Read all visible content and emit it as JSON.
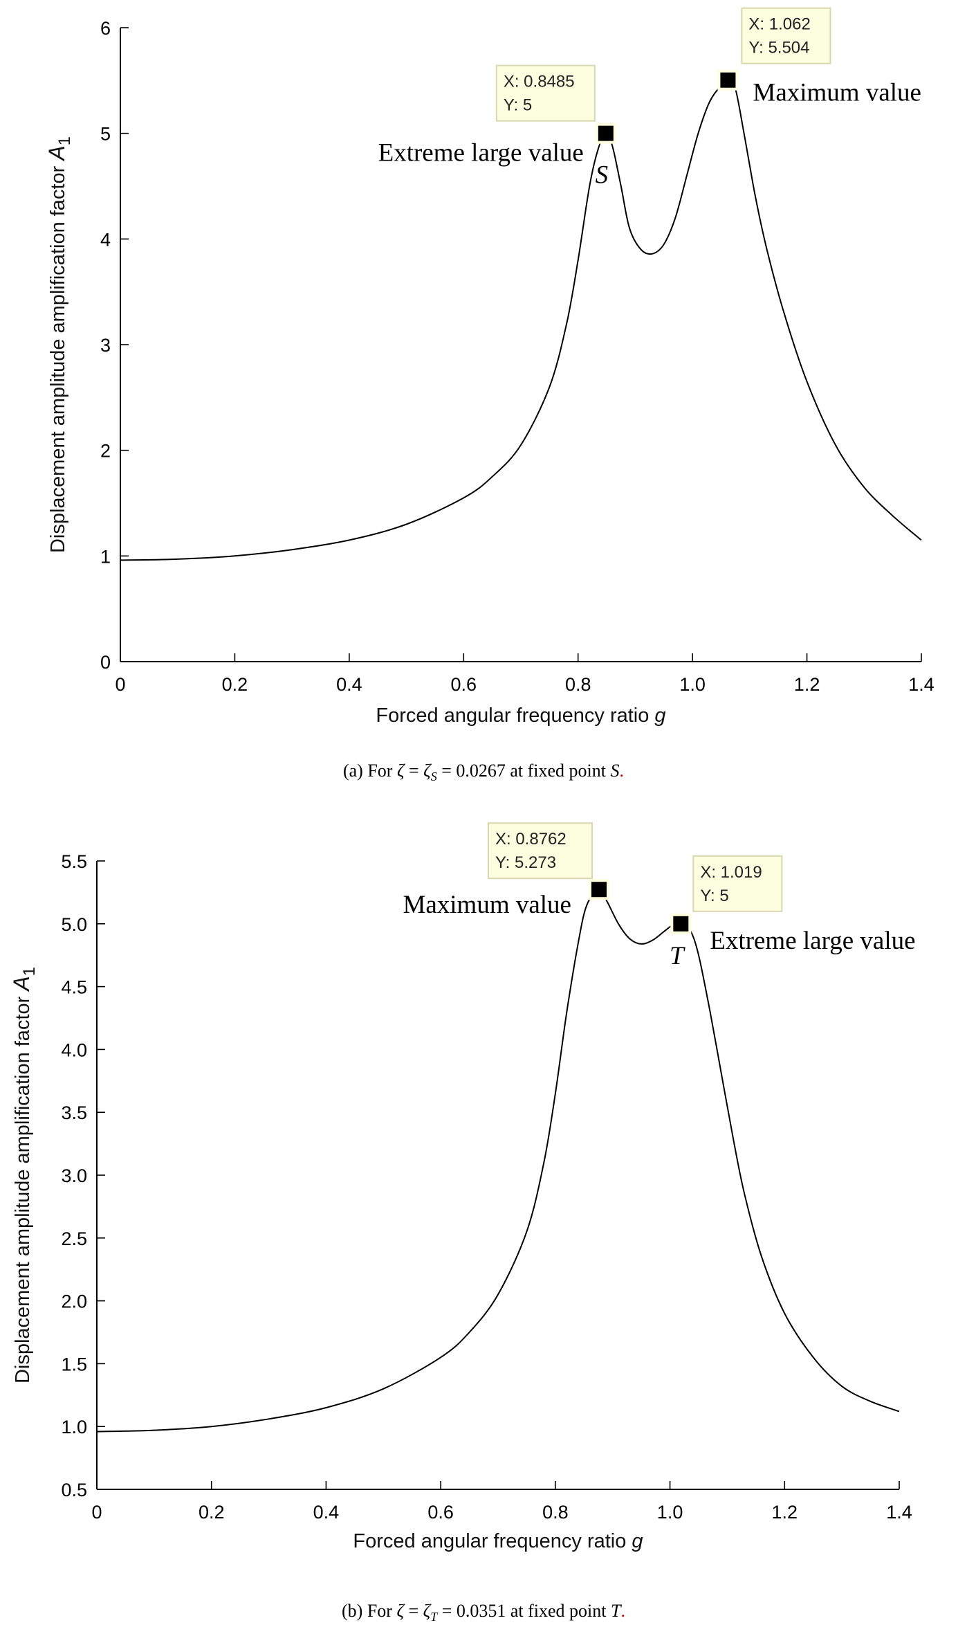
{
  "chart_data": [
    {
      "type": "line",
      "xlabel": "Forced angular frequency ratio",
      "xlabel_var": "g",
      "ylabel": "Displacement amplitude amplification factor",
      "ylabel_var": "A",
      "ylabel_sub": "1",
      "xlim": [
        0,
        1.4
      ],
      "ylim": [
        0,
        6
      ],
      "grid": false,
      "xticks": [
        0,
        0.2,
        0.4,
        0.6,
        0.8,
        1.0,
        1.2,
        1.4
      ],
      "xtick_labels": [
        "0",
        "0.2",
        "0.4",
        "0.6",
        "0.8",
        "1.0",
        "1.2",
        "1.4"
      ],
      "yticks": [
        0,
        1,
        2,
        3,
        4,
        5,
        6
      ],
      "ytick_labels": [
        "0",
        "1",
        "2",
        "3",
        "4",
        "5",
        "6"
      ],
      "series": [
        {
          "x": [
            0,
            0.1,
            0.2,
            0.3,
            0.4,
            0.5,
            0.6,
            0.65,
            0.7,
            0.75,
            0.78,
            0.8,
            0.82,
            0.835,
            0.8485,
            0.86,
            0.875,
            0.89,
            0.91,
            0.93,
            0.95,
            0.97,
            0.99,
            1.01,
            1.03,
            1.05,
            1.062,
            1.075,
            1.09,
            1.11,
            1.13,
            1.16,
            1.2,
            1.25,
            1.3,
            1.35,
            1.4
          ],
          "y": [
            0.96,
            0.97,
            1.0,
            1.06,
            1.15,
            1.3,
            1.55,
            1.75,
            2.05,
            2.6,
            3.2,
            3.8,
            4.5,
            4.85,
            5.0,
            4.88,
            4.5,
            4.1,
            3.9,
            3.86,
            3.95,
            4.2,
            4.6,
            5.0,
            5.3,
            5.45,
            5.5,
            5.42,
            5.0,
            4.4,
            3.9,
            3.3,
            2.65,
            2.05,
            1.65,
            1.38,
            1.15
          ]
        }
      ],
      "datatips": [
        {
          "x": 0.8485,
          "y": 5,
          "x_label": "X: 0.8485",
          "y_label": "Y: 5"
        },
        {
          "x": 1.062,
          "y": 5.504,
          "x_label": "X: 1.062",
          "y_label": "Y: 5.504"
        }
      ],
      "annotations": [
        {
          "text": "Extreme large value",
          "x": 0.8485,
          "y": 5,
          "side": "left"
        },
        {
          "text": "Maximum value",
          "x": 1.062,
          "y": 5.504,
          "side": "right"
        }
      ],
      "point_label": {
        "text": "S",
        "x": 0.8485,
        "y": 5
      },
      "caption": {
        "prefix": "(a) For ",
        "zeta": "ζ",
        "eq1": " = ",
        "zeta_sub_base": "ζ",
        "zeta_sub": "S",
        "eq2": " = 0.0267 at fixed point ",
        "point": "S",
        "period": "."
      }
    },
    {
      "type": "line",
      "xlabel": "Forced angular frequency ratio",
      "xlabel_var": "g",
      "ylabel": "Displacement amplitude amplification factor",
      "ylabel_var": "A",
      "ylabel_sub": "1",
      "xlim": [
        0,
        1.4
      ],
      "ylim": [
        0.5,
        5.5
      ],
      "grid": false,
      "xticks": [
        0,
        0.2,
        0.4,
        0.6,
        0.8,
        1.0,
        1.2,
        1.4
      ],
      "xtick_labels": [
        "0",
        "0.2",
        "0.4",
        "0.6",
        "0.8",
        "1.0",
        "1.2",
        "1.4"
      ],
      "yticks": [
        0.5,
        1.0,
        1.5,
        2.0,
        2.5,
        3.0,
        3.5,
        4.0,
        4.5,
        5.0,
        5.5
      ],
      "ytick_labels": [
        "0.5",
        "1.0",
        "1.5",
        "2.0",
        "2.5",
        "3.0",
        "3.5",
        "4.0",
        "4.5",
        "5.0",
        "5.5"
      ],
      "series": [
        {
          "x": [
            0,
            0.1,
            0.2,
            0.3,
            0.4,
            0.5,
            0.6,
            0.65,
            0.7,
            0.75,
            0.78,
            0.8,
            0.82,
            0.84,
            0.855,
            0.8762,
            0.89,
            0.91,
            0.93,
            0.95,
            0.97,
            0.99,
            1.005,
            1.019,
            1.035,
            1.05,
            1.07,
            1.09,
            1.11,
            1.13,
            1.16,
            1.2,
            1.25,
            1.3,
            1.35,
            1.4
          ],
          "y": [
            0.96,
            0.97,
            1.0,
            1.06,
            1.15,
            1.3,
            1.55,
            1.75,
            2.05,
            2.55,
            3.1,
            3.65,
            4.3,
            4.85,
            5.15,
            5.27,
            5.18,
            5.0,
            4.88,
            4.84,
            4.87,
            4.94,
            4.99,
            5.0,
            4.95,
            4.75,
            4.3,
            3.8,
            3.3,
            2.85,
            2.35,
            1.9,
            1.55,
            1.32,
            1.2,
            1.12
          ]
        }
      ],
      "datatips": [
        {
          "x": 0.8762,
          "y": 5.273,
          "x_label": "X: 0.8762",
          "y_label": "Y: 5.273"
        },
        {
          "x": 1.019,
          "y": 5,
          "x_label": "X: 1.019",
          "y_label": "Y: 5"
        }
      ],
      "annotations": [
        {
          "text": "Maximum value",
          "x": 0.8762,
          "y": 5.273,
          "side": "left"
        },
        {
          "text": "Extreme large value",
          "x": 1.019,
          "y": 5,
          "side": "right"
        }
      ],
      "point_label": {
        "text": "T",
        "x": 1.019,
        "y": 5
      },
      "caption": {
        "prefix": "(b) For ",
        "zeta": "ζ",
        "eq1": " = ",
        "zeta_sub_base": "ζ",
        "zeta_sub": "T",
        "eq2": " = 0.0351 at fixed point ",
        "point": "T",
        "period": "."
      }
    }
  ]
}
